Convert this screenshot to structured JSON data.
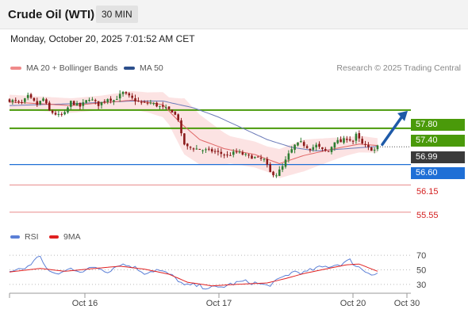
{
  "header": {
    "title": "Crude Oil (WTI)",
    "interval": "30 MIN",
    "datetime": "Monday, October 20, 2025 7:01:52 AM CET"
  },
  "legend": {
    "ma20_bb": "MA 20 + Bollinger Bands",
    "ma50": "MA 50",
    "copyright": "Research © 2025 Trading Central",
    "rsi": "RSI",
    "rsi_ma": "9MA"
  },
  "colors": {
    "up_candle": "#2e7d32",
    "down_candle": "#8b1a1a",
    "ma20": "#e06666",
    "ma50": "#6b7ab8",
    "bollinger_fill": "#fbd9d9",
    "resistance": "#4a9a0a",
    "pivot": "#1f6fd6",
    "support": "#e88a8a",
    "current_price_tag": "#3a3a3a",
    "arrow": "#1e5aa8",
    "rsi_line": "#5b7fd6",
    "rsi_ma_line": "#e02020"
  },
  "chart_data": [
    {
      "type": "candlestick",
      "y_range": [
        55.3,
        58.55
      ],
      "x_ticks": [
        "Oct 16",
        "Oct 17",
        "Oct 20",
        "Oct 30"
      ],
      "levels": {
        "resistance": [
          57.8,
          57.4
        ],
        "pivot": 56.6,
        "support": [
          56.15,
          55.55
        ],
        "current_price": 56.99
      },
      "level_labels": {
        "r1": "57.80",
        "r2": "57.40",
        "pivot": "56.60",
        "s1": "56.15",
        "s2": "55.55",
        "current": "56.99"
      },
      "close_anchors": [
        [
          0,
          58.02
        ],
        [
          4,
          57.95
        ],
        [
          6,
          58.1
        ],
        [
          9,
          57.92
        ],
        [
          11,
          58.05
        ],
        [
          13,
          57.78
        ],
        [
          16,
          57.68
        ],
        [
          18,
          57.72
        ],
        [
          20,
          57.98
        ],
        [
          23,
          57.88
        ],
        [
          26,
          58.06
        ],
        [
          29,
          57.92
        ],
        [
          32,
          58.06
        ],
        [
          34,
          58.02
        ],
        [
          37,
          58.18
        ],
        [
          40,
          58.05
        ],
        [
          43,
          57.95
        ],
        [
          46,
          57.96
        ],
        [
          50,
          57.85
        ],
        [
          53,
          57.78
        ],
        [
          55,
          57.6
        ],
        [
          56,
          57.25
        ],
        [
          57,
          57.05
        ],
        [
          58,
          56.98
        ],
        [
          60,
          56.96
        ],
        [
          63,
          56.92
        ],
        [
          66,
          56.9
        ],
        [
          69,
          56.84
        ],
        [
          71,
          56.8
        ],
        [
          74,
          56.88
        ],
        [
          77,
          56.8
        ],
        [
          80,
          56.75
        ],
        [
          83,
          56.7
        ],
        [
          85,
          56.42
        ],
        [
          87,
          56.38
        ],
        [
          89,
          56.55
        ],
        [
          91,
          56.82
        ],
        [
          93,
          57.02
        ],
        [
          95,
          57.08
        ],
        [
          98,
          56.95
        ],
        [
          100,
          57.02
        ],
        [
          102,
          56.92
        ],
        [
          104,
          56.88
        ],
        [
          106,
          57.12
        ],
        [
          108,
          57.1
        ],
        [
          110,
          57.18
        ],
        [
          112,
          57.12
        ],
        [
          113,
          57.25
        ],
        [
          115,
          57.05
        ],
        [
          117,
          56.96
        ],
        [
          119,
          56.92
        ],
        [
          120,
          56.99
        ]
      ],
      "ma20_anchors": [
        [
          0,
          57.98
        ],
        [
          20,
          57.9
        ],
        [
          40,
          58.02
        ],
        [
          50,
          57.92
        ],
        [
          56,
          57.5
        ],
        [
          62,
          57.15
        ],
        [
          70,
          56.95
        ],
        [
          80,
          56.82
        ],
        [
          88,
          56.62
        ],
        [
          96,
          56.8
        ],
        [
          106,
          56.95
        ],
        [
          114,
          57.05
        ],
        [
          120,
          57.02
        ]
      ],
      "ma50_anchors": [
        [
          0,
          57.9
        ],
        [
          20,
          57.94
        ],
        [
          40,
          58.0
        ],
        [
          50,
          58.0
        ],
        [
          60,
          57.85
        ],
        [
          68,
          57.65
        ],
        [
          76,
          57.4
        ],
        [
          84,
          57.15
        ],
        [
          92,
          56.98
        ],
        [
          100,
          56.9
        ],
        [
          110,
          56.95
        ],
        [
          120,
          57.0
        ]
      ],
      "bb_width_anchors": [
        [
          0,
          0.16
        ],
        [
          30,
          0.16
        ],
        [
          45,
          0.22
        ],
        [
          52,
          0.3
        ],
        [
          57,
          0.62
        ],
        [
          62,
          0.55
        ],
        [
          72,
          0.3
        ],
        [
          84,
          0.28
        ],
        [
          88,
          0.32
        ],
        [
          96,
          0.35
        ],
        [
          110,
          0.2
        ],
        [
          120,
          0.16
        ]
      ]
    },
    {
      "type": "line",
      "name": "RSI",
      "y_range": [
        20,
        80
      ],
      "y_ticks": [
        "70",
        "50",
        "30"
      ],
      "rsi_anchors": [
        [
          0,
          48
        ],
        [
          5,
          52
        ],
        [
          8,
          62
        ],
        [
          10,
          70
        ],
        [
          12,
          52
        ],
        [
          14,
          44
        ],
        [
          17,
          46
        ],
        [
          20,
          52
        ],
        [
          24,
          48
        ],
        [
          28,
          54
        ],
        [
          32,
          48
        ],
        [
          36,
          58
        ],
        [
          40,
          55
        ],
        [
          44,
          46
        ],
        [
          48,
          50
        ],
        [
          52,
          44
        ],
        [
          55,
          36
        ],
        [
          57,
          28
        ],
        [
          60,
          29
        ],
        [
          64,
          26
        ],
        [
          68,
          25
        ],
        [
          72,
          30
        ],
        [
          76,
          34
        ],
        [
          80,
          32
        ],
        [
          84,
          28
        ],
        [
          87,
          34
        ],
        [
          90,
          42
        ],
        [
          93,
          48
        ],
        [
          96,
          46
        ],
        [
          100,
          52
        ],
        [
          104,
          55
        ],
        [
          108,
          58
        ],
        [
          111,
          63
        ],
        [
          113,
          56
        ],
        [
          116,
          48
        ],
        [
          119,
          44
        ],
        [
          120,
          46
        ]
      ],
      "rsi_ma_anchors": [
        [
          0,
          47
        ],
        [
          10,
          52
        ],
        [
          18,
          48
        ],
        [
          28,
          52
        ],
        [
          36,
          55
        ],
        [
          44,
          51
        ],
        [
          52,
          44
        ],
        [
          58,
          33
        ],
        [
          66,
          28
        ],
        [
          74,
          30
        ],
        [
          84,
          32
        ],
        [
          90,
          38
        ],
        [
          96,
          45
        ],
        [
          104,
          52
        ],
        [
          110,
          57
        ],
        [
          114,
          58
        ],
        [
          120,
          48
        ]
      ]
    }
  ]
}
